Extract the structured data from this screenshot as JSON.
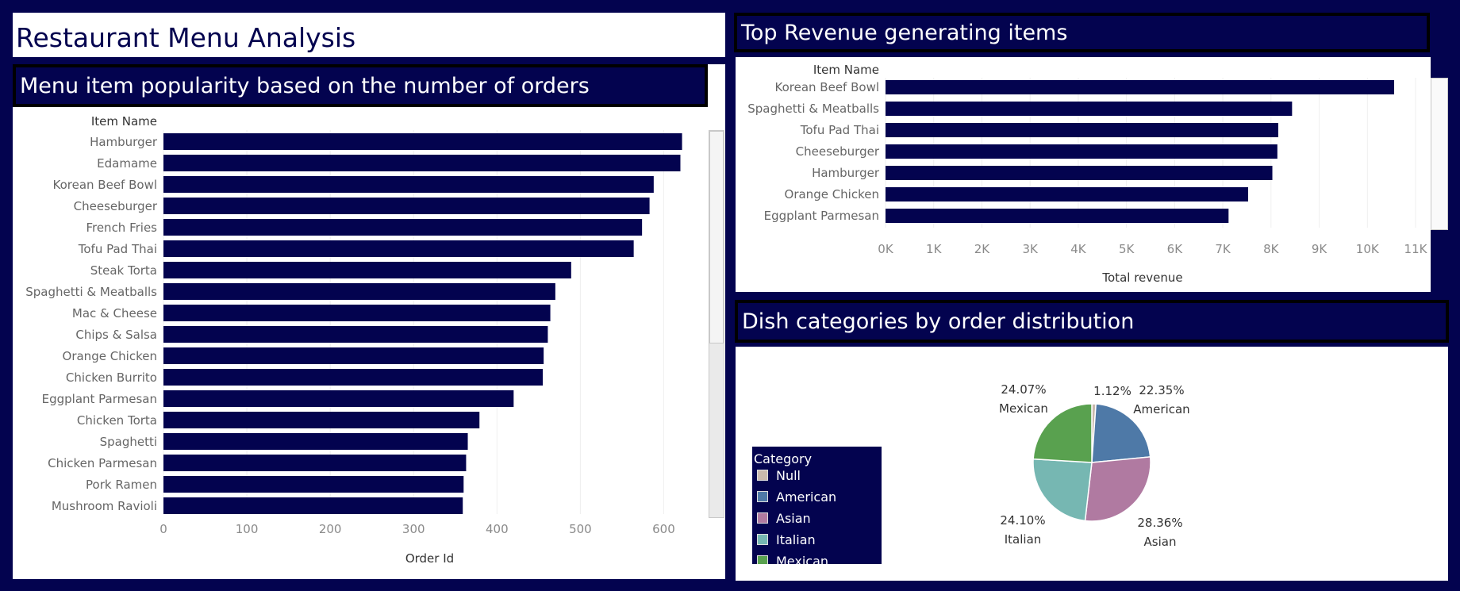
{
  "dashboard": {
    "title": "Restaurant Menu Analysis"
  },
  "colors": {
    "bar": "#03034f",
    "background": "#03034f"
  },
  "popularity": {
    "title": "Menu item popularity based on the number of orders",
    "header": "Item Name",
    "xlabel": "Order Id"
  },
  "revenue": {
    "title": "Top Revenue generating items",
    "header": "Item Name",
    "xlabel": "Total revenue"
  },
  "categories": {
    "title": "Dish categories by order distribution",
    "legend_title": "Category",
    "legend_items": [
      {
        "label": "Null",
        "color": "#c9b9ad"
      },
      {
        "label": "American",
        "color": "#4e79a7"
      },
      {
        "label": "Asian",
        "color": "#b07aa1"
      },
      {
        "label": "Italian",
        "color": "#76b7b2"
      },
      {
        "label": "Mexican",
        "color": "#59a14f"
      }
    ]
  },
  "chart_data": [
    {
      "type": "bar",
      "orientation": "horizontal",
      "title": "Menu item popularity based on the number of orders",
      "ylabel": "Item Name",
      "xlabel": "Order Id",
      "xlim": [
        0,
        650
      ],
      "xticks": [
        0,
        100,
        200,
        300,
        400,
        500,
        600
      ],
      "categories": [
        "Hamburger",
        "Edamame",
        "Korean Beef Bowl",
        "Cheeseburger",
        "French Fries",
        "Tofu Pad Thai",
        "Steak Torta",
        "Spaghetti & Meatballs",
        "Mac & Cheese",
        "Chips & Salsa",
        "Orange Chicken",
        "Chicken Burrito",
        "Eggplant Parmesan",
        "Chicken Torta",
        "Spaghetti",
        "Chicken Parmesan",
        "Pork Ramen",
        "Mushroom Ravioli"
      ],
      "values": [
        622,
        620,
        588,
        583,
        574,
        564,
        489,
        470,
        464,
        461,
        456,
        455,
        420,
        379,
        365,
        363,
        360,
        359
      ]
    },
    {
      "type": "bar",
      "orientation": "horizontal",
      "title": "Top Revenue generating items",
      "ylabel": "Item Name",
      "xlabel": "Total revenue",
      "xlim": [
        0,
        11000
      ],
      "xticks": [
        "0K",
        "1K",
        "2K",
        "3K",
        "4K",
        "5K",
        "6K",
        "7K",
        "8K",
        "9K",
        "10K",
        "11K"
      ],
      "categories": [
        "Korean Beef Bowl",
        "Spaghetti & Meatballs",
        "Tofu Pad Thai",
        "Cheeseburger",
        "Hamburger",
        "Orange Chicken",
        "Eggplant Parmesan"
      ],
      "values": [
        10555,
        8437,
        8150,
        8132,
        8028,
        7525,
        7119
      ]
    },
    {
      "type": "pie",
      "title": "Dish categories by order distribution",
      "legend": "Category",
      "labels": [
        "Null",
        "American",
        "Asian",
        "Italian",
        "Mexican"
      ],
      "values": [
        1.12,
        22.35,
        28.36,
        24.1,
        24.07
      ],
      "display": [
        "1.12%",
        "22.35%",
        "28.36%",
        "24.10%",
        "24.07%"
      ],
      "slice_labels": [
        "",
        "American",
        "Asian",
        "Italian",
        "Mexican"
      ]
    }
  ]
}
